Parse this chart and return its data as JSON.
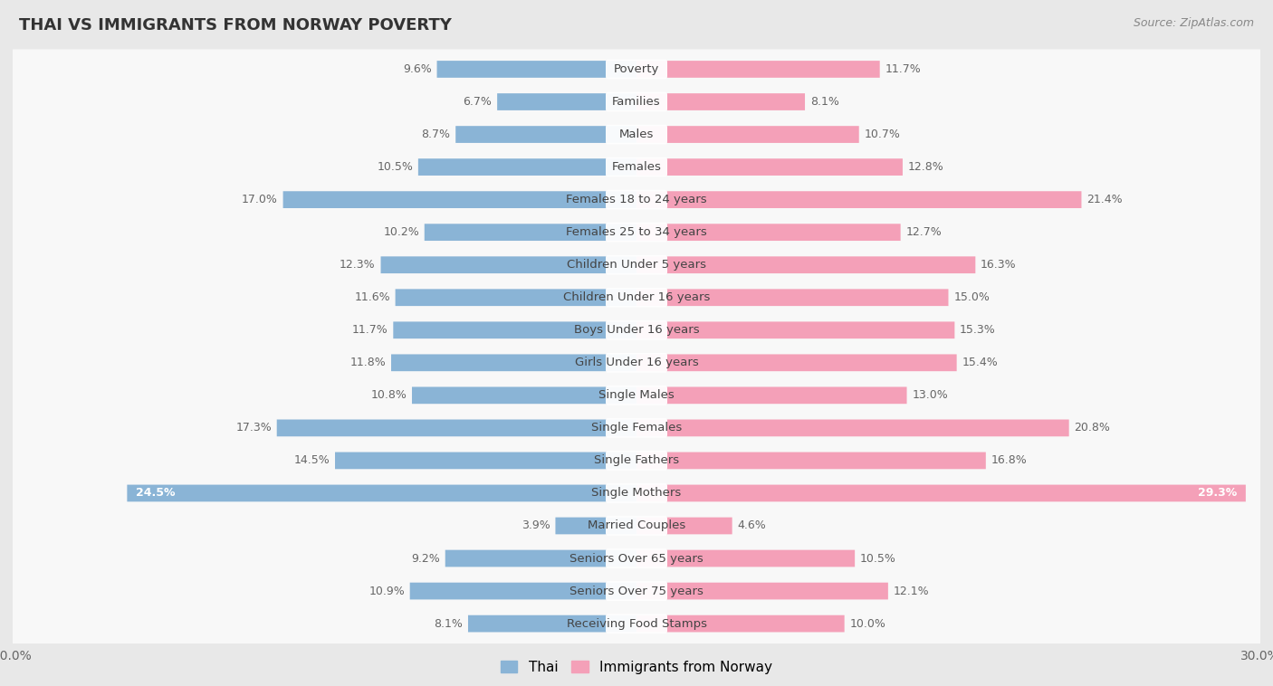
{
  "title": "THAI VS IMMIGRANTS FROM NORWAY POVERTY",
  "source": "Source: ZipAtlas.com",
  "categories": [
    "Poverty",
    "Families",
    "Males",
    "Females",
    "Females 18 to 24 years",
    "Females 25 to 34 years",
    "Children Under 5 years",
    "Children Under 16 years",
    "Boys Under 16 years",
    "Girls Under 16 years",
    "Single Males",
    "Single Females",
    "Single Fathers",
    "Single Mothers",
    "Married Couples",
    "Seniors Over 65 years",
    "Seniors Over 75 years",
    "Receiving Food Stamps"
  ],
  "thai_values": [
    9.6,
    6.7,
    8.7,
    10.5,
    17.0,
    10.2,
    12.3,
    11.6,
    11.7,
    11.8,
    10.8,
    17.3,
    14.5,
    24.5,
    3.9,
    9.2,
    10.9,
    8.1
  ],
  "norway_values": [
    11.7,
    8.1,
    10.7,
    12.8,
    21.4,
    12.7,
    16.3,
    15.0,
    15.3,
    15.4,
    13.0,
    20.8,
    16.8,
    29.3,
    4.6,
    10.5,
    12.1,
    10.0
  ],
  "thai_color": "#8ab4d6",
  "norway_color": "#f4a0b8",
  "thai_label": "Thai",
  "norway_label": "Immigrants from Norway",
  "axis_max": 30.0,
  "bg_color": "#e8e8e8",
  "row_bg_color": "#f8f8f8",
  "title_fontsize": 13,
  "label_fontsize": 9.5,
  "value_fontsize": 9,
  "figsize": [
    14.06,
    7.58
  ],
  "dpi": 100,
  "thai_inside_threshold": 22,
  "norway_inside_threshold": 27
}
